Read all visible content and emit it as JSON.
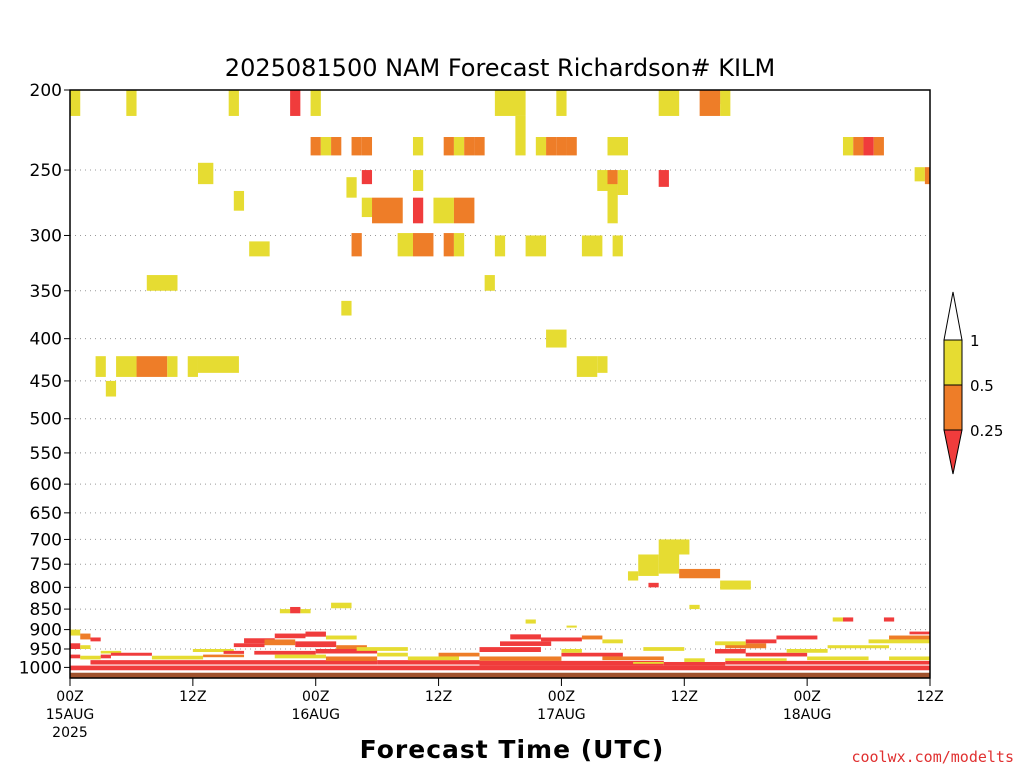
{
  "chart_data": {
    "type": "heatmap",
    "title": "2025081500 NAM Forecast Richardson# KILM",
    "xlabel": "Forecast Time (UTC)",
    "ylabel": "",
    "credit": "coolwx.com/modelts",
    "x_unit": "hours since 2025-08-15 00Z",
    "xlim": [
      0,
      84
    ],
    "ylim": [
      1030,
      200
    ],
    "y_scale": "log-pressure",
    "y_ticks": [
      "200",
      "250",
      "300",
      "350",
      "400",
      "450",
      "500",
      "550",
      "600",
      "650",
      "700",
      "750",
      "800",
      "850",
      "900",
      "950",
      "1000"
    ],
    "x_ticks": [
      {
        "h": 0,
        "l1": "00Z",
        "l2": "15AUG",
        "l3": "2025"
      },
      {
        "h": 12,
        "l1": "12Z",
        "l2": "",
        "l3": ""
      },
      {
        "h": 24,
        "l1": "00Z",
        "l2": "16AUG",
        "l3": ""
      },
      {
        "h": 36,
        "l1": "12Z",
        "l2": "",
        "l3": ""
      },
      {
        "h": 48,
        "l1": "00Z",
        "l2": "17AUG",
        "l3": ""
      },
      {
        "h": 60,
        "l1": "12Z",
        "l2": "",
        "l3": ""
      },
      {
        "h": 72,
        "l1": "00Z",
        "l2": "18AUG",
        "l3": ""
      },
      {
        "h": 84,
        "l1": "12Z",
        "l2": "",
        "l3": ""
      }
    ],
    "grid": "dotted horizontal at pressure ticks",
    "legend": {
      "placement": "right",
      "labels": [
        "1",
        "0.5",
        "0.25"
      ],
      "colors": {
        "y": "#e6dc32",
        "o": "#ee7d28",
        "r": "#f03c3c",
        "ground": "#a0522d"
      }
    },
    "ground_pressure": [
      1015,
      1030
    ],
    "cells": [
      [
        0,
        1,
        200,
        215,
        "y"
      ],
      [
        5.5,
        6.5,
        200,
        215,
        "y"
      ],
      [
        15.5,
        16.5,
        200,
        215,
        "y"
      ],
      [
        21.5,
        22.5,
        200,
        215,
        "r"
      ],
      [
        23.5,
        24.5,
        200,
        215,
        "y"
      ],
      [
        41.5,
        44.5,
        200,
        215,
        "y"
      ],
      [
        43.5,
        44.5,
        215,
        228,
        "y"
      ],
      [
        47.5,
        48.5,
        200,
        215,
        "y"
      ],
      [
        57.5,
        59.5,
        200,
        215,
        "y"
      ],
      [
        61.5,
        63.5,
        200,
        215,
        "o"
      ],
      [
        63.5,
        64.5,
        200,
        215,
        "y"
      ],
      [
        62.5,
        63.5,
        200,
        208,
        "o"
      ],
      [
        23.5,
        24.5,
        228,
        240,
        "o"
      ],
      [
        24.5,
        25.5,
        228,
        240,
        "y"
      ],
      [
        25.5,
        26.5,
        228,
        240,
        "o"
      ],
      [
        27.5,
        28.5,
        228,
        240,
        "o"
      ],
      [
        28.5,
        29.5,
        228,
        240,
        "o"
      ],
      [
        33.5,
        34.5,
        228,
        240,
        "y"
      ],
      [
        36.5,
        37.5,
        228,
        240,
        "o"
      ],
      [
        37.5,
        38.5,
        228,
        240,
        "y"
      ],
      [
        38.5,
        39.5,
        228,
        240,
        "o"
      ],
      [
        39.5,
        40.5,
        228,
        240,
        "o"
      ],
      [
        43.5,
        44.5,
        228,
        240,
        "y"
      ],
      [
        45.5,
        46.5,
        228,
        240,
        "y"
      ],
      [
        46.5,
        47.5,
        228,
        240,
        "o"
      ],
      [
        47.5,
        48.5,
        228,
        240,
        "o"
      ],
      [
        48.5,
        49.5,
        228,
        240,
        "o"
      ],
      [
        52.5,
        54.5,
        228,
        240,
        "y"
      ],
      [
        75.5,
        76.5,
        228,
        240,
        "y"
      ],
      [
        76.5,
        77.5,
        228,
        240,
        "o"
      ],
      [
        77.5,
        78.5,
        228,
        240,
        "r"
      ],
      [
        78.5,
        79.5,
        228,
        240,
        "o"
      ],
      [
        12.5,
        14,
        245,
        260,
        "y"
      ],
      [
        16,
        17,
        265,
        280,
        "y"
      ],
      [
        17.5,
        19.5,
        305,
        318,
        "y"
      ],
      [
        27,
        28,
        255,
        270,
        "y"
      ],
      [
        28.5,
        29.5,
        250,
        260,
        "r"
      ],
      [
        33.5,
        34.5,
        250,
        265,
        "y"
      ],
      [
        51.5,
        52.5,
        250,
        265,
        "y"
      ],
      [
        52.5,
        53.5,
        250,
        268,
        "o"
      ],
      [
        53.5,
        54.5,
        250,
        268,
        "y"
      ],
      [
        57.5,
        58.5,
        250,
        262,
        "r"
      ],
      [
        82.5,
        83.5,
        248,
        258,
        "y"
      ],
      [
        83.5,
        84,
        248,
        260,
        "o"
      ],
      [
        28.5,
        29.5,
        270,
        285,
        "y"
      ],
      [
        29.5,
        32.5,
        270,
        290,
        "o"
      ],
      [
        33.5,
        34.5,
        270,
        290,
        "r"
      ],
      [
        35.5,
        37.5,
        270,
        290,
        "y"
      ],
      [
        37.5,
        39.5,
        270,
        290,
        "o"
      ],
      [
        52.5,
        53.5,
        260,
        290,
        "y"
      ],
      [
        27.5,
        28.5,
        298,
        318,
        "o"
      ],
      [
        32,
        33.5,
        298,
        318,
        "y"
      ],
      [
        33.5,
        35.5,
        298,
        318,
        "o"
      ],
      [
        36.5,
        37.5,
        298,
        318,
        "o"
      ],
      [
        37.5,
        38.5,
        298,
        318,
        "y"
      ],
      [
        41.5,
        42.5,
        300,
        318,
        "y"
      ],
      [
        44.5,
        46.5,
        300,
        318,
        "y"
      ],
      [
        50,
        52,
        300,
        318,
        "y"
      ],
      [
        53,
        54,
        300,
        318,
        "y"
      ],
      [
        7.5,
        10.5,
        335,
        350,
        "y"
      ],
      [
        40.5,
        41.5,
        335,
        350,
        "y"
      ],
      [
        26.5,
        27.5,
        360,
        375,
        "y"
      ],
      [
        46.5,
        48.5,
        390,
        410,
        "y"
      ],
      [
        2.5,
        3.5,
        420,
        445,
        "y"
      ],
      [
        3.5,
        4.5,
        450,
        470,
        "y"
      ],
      [
        4.5,
        6.5,
        420,
        445,
        "y"
      ],
      [
        6.5,
        9.5,
        420,
        445,
        "o"
      ],
      [
        9.5,
        10.5,
        420,
        445,
        "y"
      ],
      [
        11.5,
        12.5,
        420,
        445,
        "y"
      ],
      [
        12.5,
        16.5,
        420,
        440,
        "y"
      ],
      [
        49.5,
        51.5,
        420,
        445,
        "y"
      ],
      [
        51.5,
        52.5,
        420,
        440,
        "y"
      ],
      [
        57.5,
        60.5,
        700,
        730,
        "y"
      ],
      [
        55.5,
        57.5,
        730,
        775,
        "y"
      ],
      [
        57.5,
        59.5,
        730,
        770,
        "y"
      ],
      [
        59.5,
        63.5,
        760,
        780,
        "o"
      ],
      [
        54.5,
        55.5,
        765,
        785,
        "y"
      ],
      [
        56.5,
        57.5,
        790,
        800,
        "r"
      ],
      [
        63.5,
        66.5,
        785,
        805,
        "y"
      ],
      [
        60.5,
        61.5,
        840,
        850,
        "y"
      ],
      [
        20.5,
        21.5,
        850,
        860,
        "y"
      ],
      [
        21.5,
        22.5,
        845,
        860,
        "r"
      ],
      [
        22.5,
        23.5,
        850,
        860,
        "y"
      ],
      [
        25.5,
        27.5,
        835,
        848,
        "y"
      ],
      [
        74.5,
        75.5,
        870,
        880,
        "y"
      ],
      [
        75.5,
        76.5,
        870,
        880,
        "r"
      ],
      [
        79.5,
        80.5,
        870,
        880,
        "r"
      ],
      [
        44.5,
        45.5,
        875,
        885,
        "y"
      ],
      [
        48.5,
        49.5,
        890,
        895,
        "y"
      ],
      [
        0,
        1,
        900,
        915,
        "y"
      ],
      [
        1,
        2,
        910,
        925,
        "o"
      ],
      [
        2,
        3,
        920,
        930,
        "r"
      ],
      [
        0,
        1,
        935,
        950,
        "r"
      ],
      [
        1,
        2,
        940,
        950,
        "y"
      ],
      [
        3,
        5,
        955,
        962,
        "y"
      ],
      [
        0,
        1,
        965,
        975,
        "r"
      ],
      [
        1,
        3,
        968,
        978,
        "y"
      ],
      [
        3,
        4,
        965,
        975,
        "r"
      ],
      [
        4,
        8,
        960,
        968,
        "r"
      ],
      [
        0,
        84,
        995,
        1008,
        "r"
      ],
      [
        2,
        30,
        980,
        992,
        "r"
      ],
      [
        8,
        13,
        968,
        978,
        "y"
      ],
      [
        13,
        17,
        965,
        972,
        "o"
      ],
      [
        17,
        20,
        922,
        935,
        "r"
      ],
      [
        20,
        23,
        910,
        922,
        "r"
      ],
      [
        23,
        25,
        905,
        918,
        "r"
      ],
      [
        25,
        28,
        915,
        925,
        "y"
      ],
      [
        16,
        19,
        935,
        945,
        "r"
      ],
      [
        19,
        22,
        925,
        940,
        "o"
      ],
      [
        22,
        26,
        930,
        945,
        "r"
      ],
      [
        26,
        29,
        940,
        950,
        "o"
      ],
      [
        18,
        24,
        955,
        965,
        "r"
      ],
      [
        24,
        30,
        950,
        962,
        "r"
      ],
      [
        20,
        25,
        965,
        975,
        "y"
      ],
      [
        25,
        30,
        970,
        982,
        "o"
      ],
      [
        30,
        33,
        960,
        970,
        "y"
      ],
      [
        28,
        33,
        945,
        955,
        "y"
      ],
      [
        30,
        40,
        980,
        992,
        "r"
      ],
      [
        33,
        38,
        970,
        980,
        "y"
      ],
      [
        36,
        40,
        960,
        970,
        "o"
      ],
      [
        40,
        46,
        945,
        958,
        "r"
      ],
      [
        42,
        47,
        930,
        942,
        "r"
      ],
      [
        43,
        46,
        912,
        925,
        "r"
      ],
      [
        46,
        50,
        920,
        930,
        "r"
      ],
      [
        50,
        52,
        915,
        925,
        "o"
      ],
      [
        52,
        54,
        925,
        935,
        "y"
      ],
      [
        40,
        48,
        970,
        982,
        "o"
      ],
      [
        48,
        54,
        960,
        970,
        "r"
      ],
      [
        52,
        58,
        970,
        980,
        "o"
      ],
      [
        40,
        58,
        982,
        995,
        "r"
      ],
      [
        55,
        58,
        985,
        990,
        "y"
      ],
      [
        58,
        64,
        985,
        995,
        "r"
      ],
      [
        60,
        62,
        975,
        985,
        "y"
      ],
      [
        63,
        66,
        950,
        962,
        "r"
      ],
      [
        64,
        68,
        935,
        948,
        "o"
      ],
      [
        66,
        69,
        925,
        935,
        "r"
      ],
      [
        69,
        73,
        915,
        925,
        "r"
      ],
      [
        63,
        66,
        930,
        940,
        "y"
      ],
      [
        66,
        72,
        960,
        970,
        "r"
      ],
      [
        70,
        74,
        950,
        960,
        "y"
      ],
      [
        72,
        78,
        970,
        980,
        "y"
      ],
      [
        74,
        80,
        940,
        948,
        "y"
      ],
      [
        78,
        84,
        925,
        935,
        "y"
      ],
      [
        80,
        84,
        915,
        925,
        "o"
      ],
      [
        82,
        84,
        905,
        912,
        "r"
      ],
      [
        64,
        84,
        982,
        992,
        "r"
      ],
      [
        64,
        70,
        975,
        982,
        "y"
      ],
      [
        80,
        84,
        970,
        980,
        "y"
      ],
      [
        48,
        50,
        950,
        960,
        "y"
      ],
      [
        56,
        60,
        945,
        955,
        "y"
      ],
      [
        12,
        16,
        950,
        958,
        "y"
      ],
      [
        15,
        17,
        955,
        963,
        "r"
      ]
    ]
  }
}
